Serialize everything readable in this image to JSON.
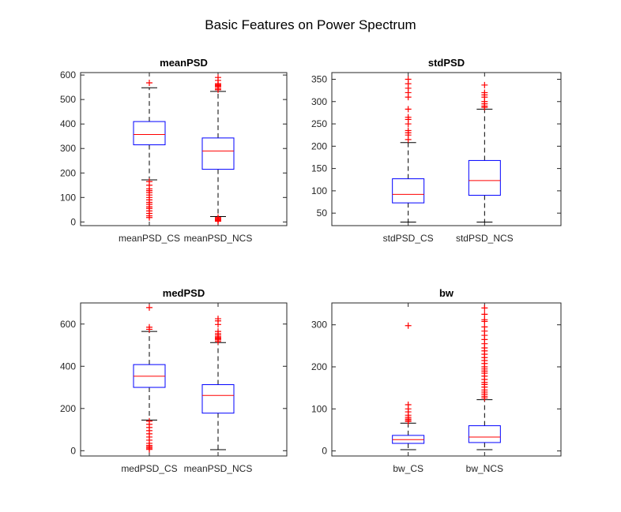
{
  "figure": {
    "title": "Basic Features on Power Spectrum"
  },
  "colors": {
    "box": "#0000ff",
    "median": "#ff0000",
    "whisker": "#000000",
    "outlier": "#ff0000",
    "axes": "#262626"
  },
  "chart_data": [
    {
      "type": "box",
      "title": "meanPSD",
      "categories": [
        "meanPSD_CS",
        "meanPSD_NCS"
      ],
      "ylim": [
        -15,
        610
      ],
      "yticks": [
        0,
        100,
        200,
        300,
        400,
        500,
        600
      ],
      "boxes": [
        {
          "q1": 315,
          "median": 357,
          "q3": 410,
          "whisker_low": 172,
          "whisker_high": 548,
          "outliers": [
            568,
            165,
            150,
            135,
            128,
            120,
            110,
            100,
            90,
            80,
            72,
            62,
            55,
            45,
            35,
            25,
            18
          ]
        },
        {
          "q1": 215,
          "median": 290,
          "q3": 343,
          "whisker_low": 22,
          "whisker_high": 533,
          "outliers": [
            590,
            578,
            565,
            560,
            556,
            552,
            545,
            540,
            18,
            14,
            10,
            7,
            5,
            3
          ]
        }
      ]
    },
    {
      "type": "box",
      "title": "stdPSD",
      "categories": [
        "stdPSD_CS",
        "stdPSD_NCS"
      ],
      "ylim": [
        22,
        365
      ],
      "yticks": [
        50,
        100,
        150,
        200,
        250,
        300,
        350
      ],
      "boxes": [
        {
          "q1": 73,
          "median": 92,
          "q3": 127,
          "whisker_low": 30,
          "whisker_high": 208,
          "outliers": [
            350,
            340,
            330,
            320,
            310,
            283,
            265,
            260,
            250,
            235,
            230,
            225,
            215
          ]
        },
        {
          "q1": 90,
          "median": 123,
          "q3": 168,
          "whisker_low": 30,
          "whisker_high": 283,
          "outliers": [
            337,
            320,
            315,
            310,
            300,
            295,
            290,
            287
          ]
        }
      ]
    },
    {
      "type": "box",
      "title": "medPSD",
      "categories": [
        "medPSD_CS",
        "meanPSD_NCS"
      ],
      "ylim": [
        -25,
        700
      ],
      "yticks": [
        0,
        200,
        400,
        600
      ],
      "boxes": [
        {
          "q1": 300,
          "median": 353,
          "q3": 408,
          "whisker_low": 145,
          "whisker_high": 565,
          "outliers": [
            678,
            585,
            575,
            140,
            125,
            110,
            95,
            80,
            65,
            50,
            35,
            25,
            18,
            12,
            6
          ]
        },
        {
          "q1": 178,
          "median": 262,
          "q3": 313,
          "whisker_low": 5,
          "whisker_high": 512,
          "outliers": [
            625,
            615,
            598,
            565,
            555,
            548,
            540,
            535,
            530,
            525,
            518
          ]
        }
      ]
    },
    {
      "type": "box",
      "title": "bw",
      "categories": [
        "bw_CS",
        "bw_NCS"
      ],
      "ylim": [
        -12,
        352
      ],
      "yticks": [
        0,
        100,
        200,
        300
      ],
      "boxes": [
        {
          "q1": 18,
          "median": 27,
          "q3": 37,
          "whisker_low": 3,
          "whisker_high": 66,
          "outliers": [
            298,
            110,
            100,
            93,
            85,
            80,
            76,
            73,
            70
          ]
        },
        {
          "q1": 20,
          "median": 33,
          "q3": 60,
          "whisker_low": 3,
          "whisker_high": 122,
          "outliers": [
            340,
            325,
            312,
            308,
            295,
            285,
            275,
            265,
            255,
            245,
            238,
            230,
            222,
            215,
            208,
            200,
            195,
            190,
            185,
            178,
            170,
            163,
            158,
            152,
            145,
            140,
            135,
            130,
            126
          ]
        }
      ]
    }
  ]
}
